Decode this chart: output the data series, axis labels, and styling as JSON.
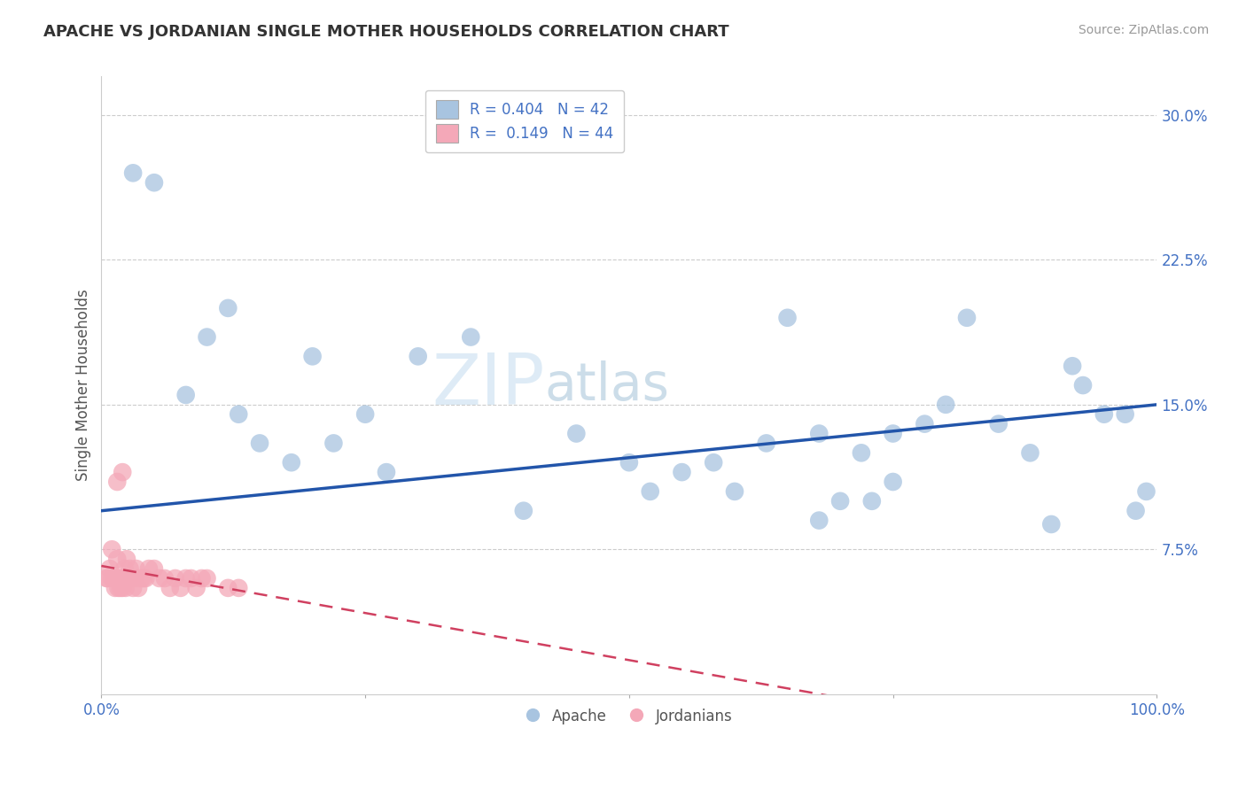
{
  "title": "APACHE VS JORDANIAN SINGLE MOTHER HOUSEHOLDS CORRELATION CHART",
  "source": "Source: ZipAtlas.com",
  "ylabel": "Single Mother Households",
  "xlim": [
    0,
    1.0
  ],
  "ylim": [
    0,
    0.32
  ],
  "xticks": [
    0.0,
    0.25,
    0.5,
    0.75,
    1.0
  ],
  "xticklabels": [
    "0.0%",
    "",
    "",
    "",
    "100.0%"
  ],
  "yticks": [
    0.075,
    0.15,
    0.225,
    0.3
  ],
  "yticklabels": [
    "7.5%",
    "15.0%",
    "22.5%",
    "30.0%"
  ],
  "legend_labels": [
    "Apache",
    "Jordanians"
  ],
  "legend_R": [
    "0.404",
    "0.149"
  ],
  "legend_N": [
    "42",
    "44"
  ],
  "apache_color": "#a8c4e0",
  "jordanian_color": "#f4a8b8",
  "apache_line_color": "#2255aa",
  "jordanian_line_color": "#d04060",
  "watermark_color": "#d8eaf5",
  "tick_color": "#4472c4",
  "apache_x": [
    0.03,
    0.08,
    0.1,
    0.13,
    0.15,
    0.18,
    0.2,
    0.22,
    0.25,
    0.27,
    0.3,
    0.35,
    0.4,
    0.45,
    0.5,
    0.52,
    0.55,
    0.58,
    0.6,
    0.63,
    0.65,
    0.68,
    0.7,
    0.72,
    0.75,
    0.75,
    0.78,
    0.8,
    0.82,
    0.85,
    0.88,
    0.9,
    0.92,
    0.93,
    0.95,
    0.97,
    0.98,
    0.99,
    0.05,
    0.12,
    0.68,
    0.73
  ],
  "apache_y": [
    0.27,
    0.155,
    0.185,
    0.145,
    0.13,
    0.12,
    0.175,
    0.13,
    0.145,
    0.115,
    0.175,
    0.185,
    0.095,
    0.135,
    0.12,
    0.105,
    0.115,
    0.12,
    0.105,
    0.13,
    0.195,
    0.135,
    0.1,
    0.125,
    0.11,
    0.135,
    0.14,
    0.15,
    0.195,
    0.14,
    0.125,
    0.088,
    0.17,
    0.16,
    0.145,
    0.145,
    0.095,
    0.105,
    0.265,
    0.2,
    0.09,
    0.1
  ],
  "jordanian_x": [
    0.005,
    0.006,
    0.008,
    0.01,
    0.01,
    0.012,
    0.013,
    0.015,
    0.015,
    0.016,
    0.018,
    0.019,
    0.02,
    0.021,
    0.022,
    0.023,
    0.024,
    0.025,
    0.026,
    0.027,
    0.028,
    0.03,
    0.032,
    0.033,
    0.035,
    0.038,
    0.04,
    0.042,
    0.045,
    0.05,
    0.055,
    0.06,
    0.065,
    0.07,
    0.075,
    0.08,
    0.085,
    0.09,
    0.095,
    0.1,
    0.12,
    0.13,
    0.02,
    0.015
  ],
  "jordanian_y": [
    0.06,
    0.06,
    0.065,
    0.06,
    0.075,
    0.06,
    0.055,
    0.06,
    0.07,
    0.055,
    0.055,
    0.06,
    0.055,
    0.06,
    0.065,
    0.055,
    0.07,
    0.06,
    0.06,
    0.065,
    0.06,
    0.055,
    0.06,
    0.065,
    0.055,
    0.06,
    0.06,
    0.06,
    0.065,
    0.065,
    0.06,
    0.06,
    0.055,
    0.06,
    0.055,
    0.06,
    0.06,
    0.055,
    0.06,
    0.06,
    0.055,
    0.055,
    0.115,
    0.11
  ]
}
